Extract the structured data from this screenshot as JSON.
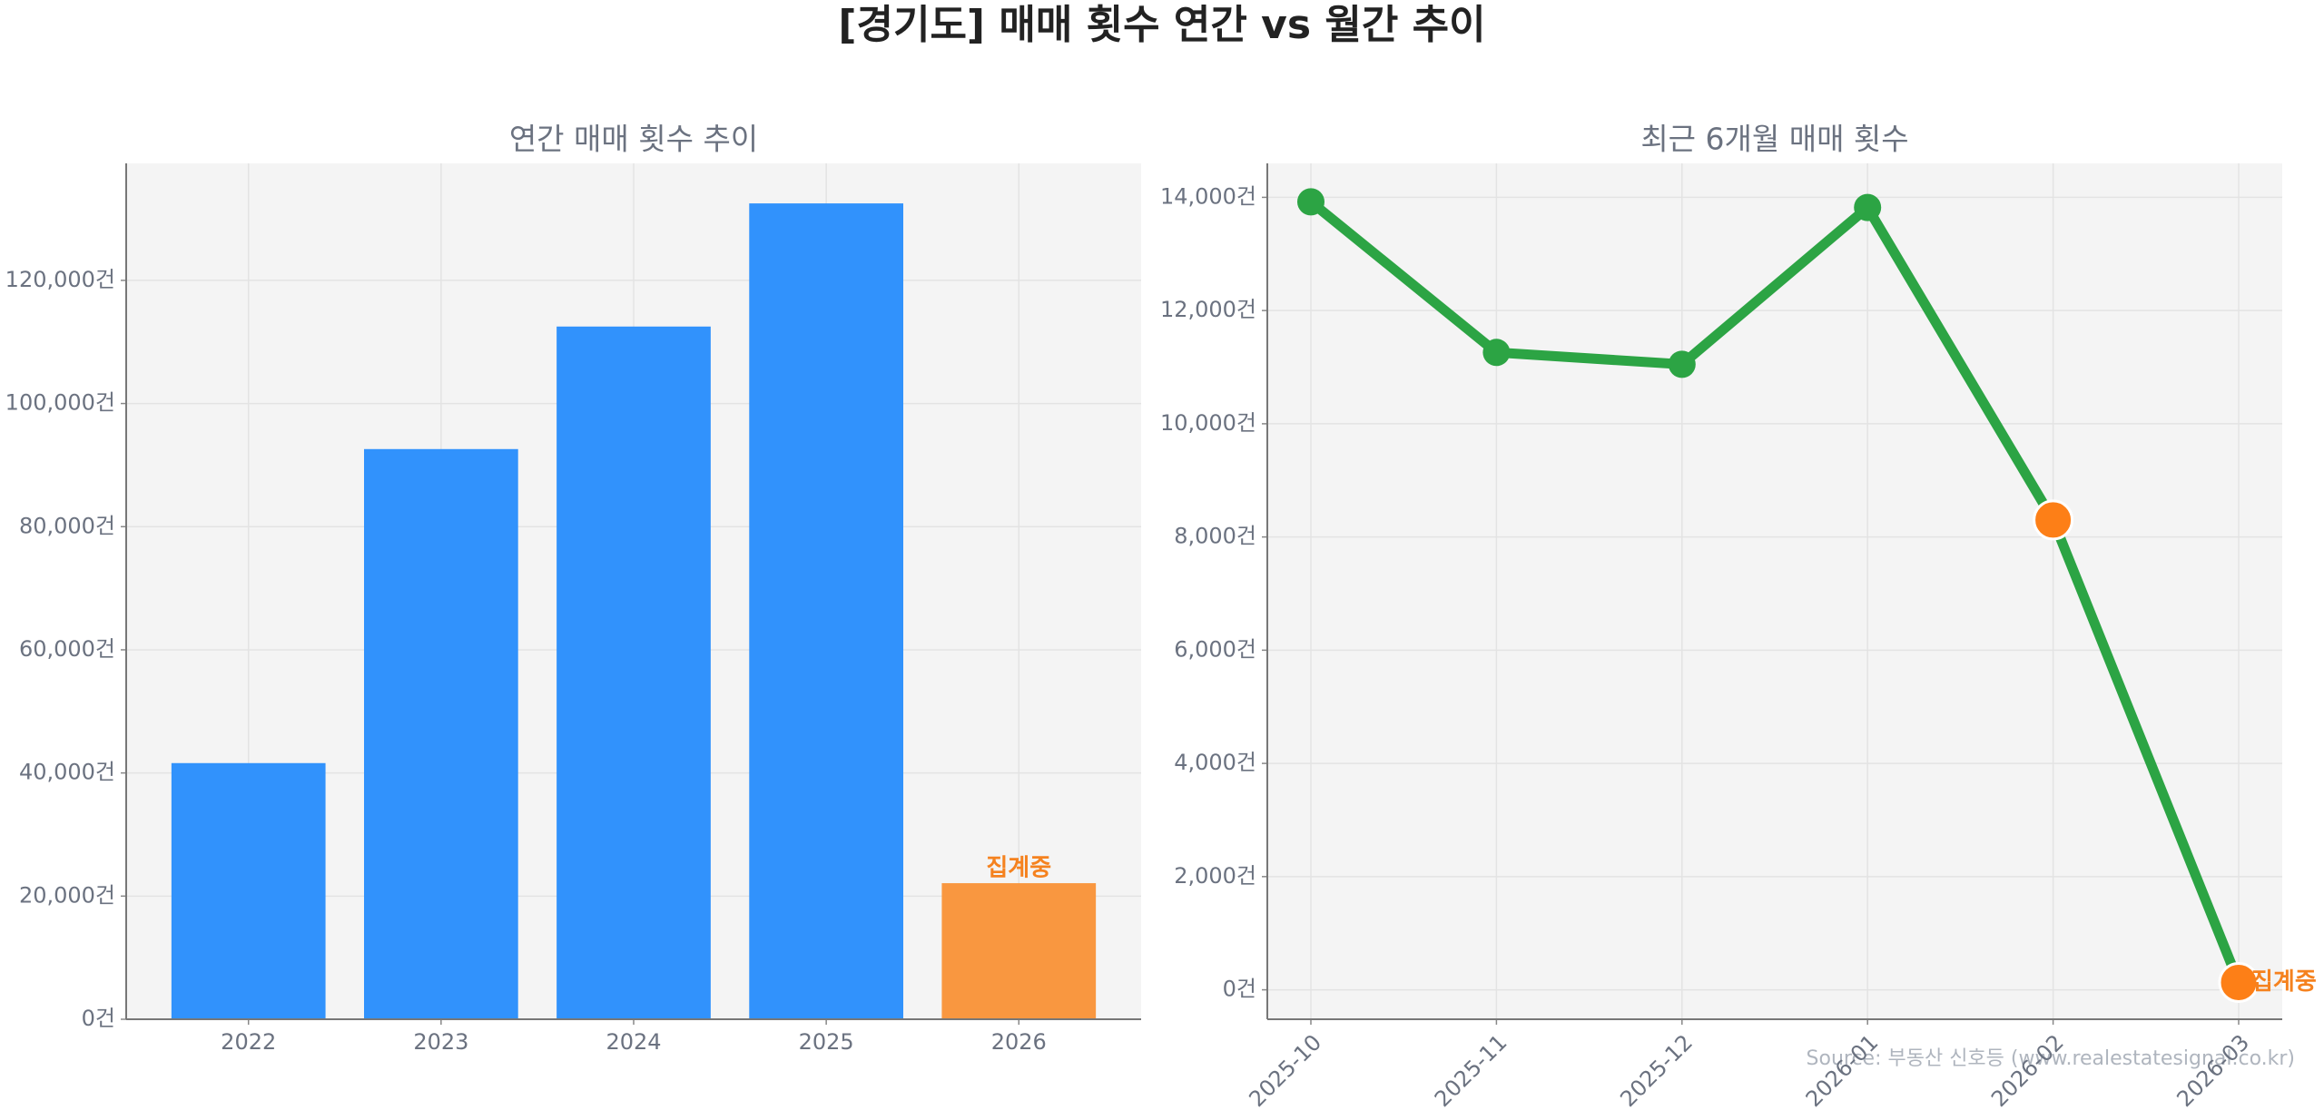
{
  "title": "[경기도] 매매 횟수 연간 vs 월간 추이",
  "source": "Source: 부동산 신호등 (www.realestatesignal.co.kr)",
  "chart_data": [
    {
      "type": "bar",
      "title": "연간 매매 횟수 추이",
      "categories": [
        "2022",
        "2023",
        "2024",
        "2025",
        "2026"
      ],
      "values": [
        41600,
        92600,
        112500,
        132500,
        22100
      ],
      "colors": [
        "#3192fc",
        "#3192fc",
        "#3192fc",
        "#3192fc",
        "#f99740"
      ],
      "annotations": [
        {
          "category": "2026",
          "text": "집계중",
          "color": "#f5821f"
        }
      ],
      "ylim": [
        0,
        139000
      ],
      "yticks": [
        {
          "value": 0,
          "label": "0건"
        },
        {
          "value": 20000,
          "label": "20,000건"
        },
        {
          "value": 40000,
          "label": "40,000건"
        },
        {
          "value": 60000,
          "label": "60,000건"
        },
        {
          "value": 80000,
          "label": "80,000건"
        },
        {
          "value": 100000,
          "label": "100,000건"
        },
        {
          "value": 120000,
          "label": "120,000건"
        }
      ],
      "grid": true
    },
    {
      "type": "line",
      "title": "최근 6개월 매매 횟수",
      "categories": [
        "2025-10",
        "2025-11",
        "2025-12",
        "2026-01",
        "2026-02",
        "2026-03"
      ],
      "values": [
        13920,
        11260,
        11050,
        13820,
        8300,
        130
      ],
      "color": "#2ca444",
      "marker_colors": [
        "#2ca444",
        "#2ca444",
        "#2ca444",
        "#2ca444",
        "#fd7f17",
        "#fd7f17"
      ],
      "annotations": [
        {
          "category": "2026-03",
          "text": "집계중",
          "color": "#f5821f"
        }
      ],
      "ylim": [
        -520,
        14600
      ],
      "yticks": [
        {
          "value": 0,
          "label": "0건"
        },
        {
          "value": 2000,
          "label": "2,000건"
        },
        {
          "value": 4000,
          "label": "4,000건"
        },
        {
          "value": 6000,
          "label": "6,000건"
        },
        {
          "value": 8000,
          "label": "8,000건"
        },
        {
          "value": 10000,
          "label": "10,000건"
        },
        {
          "value": 12000,
          "label": "12,000건"
        },
        {
          "value": 14000,
          "label": "14,000건"
        }
      ],
      "grid": true
    }
  ]
}
